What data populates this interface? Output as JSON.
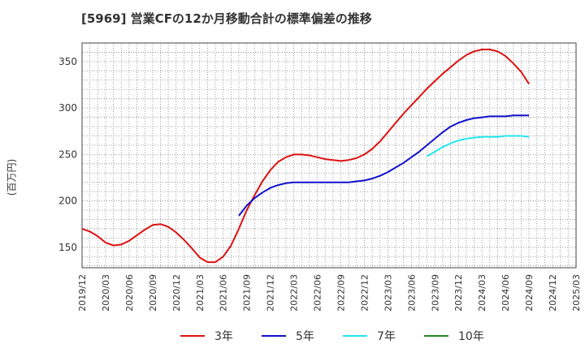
{
  "chart_data": {
    "type": "line",
    "title": "[5969]  営業CFの12か月移動合計の標準偏差の推移",
    "ylabel": "(百万円)",
    "xlabel": "",
    "ylim": [
      128,
      370
    ],
    "yticks": [
      150,
      200,
      250,
      300,
      350
    ],
    "xlim": [
      "2019-12",
      "2025-03"
    ],
    "xticks": [
      "2019/12",
      "2020/03",
      "2020/06",
      "2020/09",
      "2020/12",
      "2021/03",
      "2021/06",
      "2021/09",
      "2021/12",
      "2022/03",
      "2022/06",
      "2022/09",
      "2022/12",
      "2023/03",
      "2023/06",
      "2023/09",
      "2023/12",
      "2024/03",
      "2024/06",
      "2024/09",
      "2024/12",
      "2025/03"
    ],
    "grid": true,
    "legend_position": "bottom",
    "series": [
      {
        "name": "3年",
        "color": "#dd1111",
        "points": [
          [
            "2019-12",
            170
          ],
          [
            "2020-01",
            167
          ],
          [
            "2020-02",
            162
          ],
          [
            "2020-03",
            155
          ],
          [
            "2020-04",
            152
          ],
          [
            "2020-05",
            153
          ],
          [
            "2020-06",
            157
          ],
          [
            "2020-07",
            163
          ],
          [
            "2020-08",
            169
          ],
          [
            "2020-09",
            174
          ],
          [
            "2020-10",
            175
          ],
          [
            "2020-11",
            172
          ],
          [
            "2020-12",
            166
          ],
          [
            "2021-01",
            158
          ],
          [
            "2021-02",
            149
          ],
          [
            "2021-03",
            139
          ],
          [
            "2021-04",
            134
          ],
          [
            "2021-05",
            134
          ],
          [
            "2021-06",
            140
          ],
          [
            "2021-07",
            152
          ],
          [
            "2021-08",
            170
          ],
          [
            "2021-09",
            190
          ],
          [
            "2021-10",
            206
          ],
          [
            "2021-11",
            221
          ],
          [
            "2021-12",
            233
          ],
          [
            "2022-01",
            242
          ],
          [
            "2022-02",
            247
          ],
          [
            "2022-03",
            250
          ],
          [
            "2022-04",
            250
          ],
          [
            "2022-05",
            249
          ],
          [
            "2022-06",
            247
          ],
          [
            "2022-07",
            245
          ],
          [
            "2022-08",
            244
          ],
          [
            "2022-09",
            243
          ],
          [
            "2022-10",
            244
          ],
          [
            "2022-11",
            246
          ],
          [
            "2022-12",
            250
          ],
          [
            "2023-01",
            256
          ],
          [
            "2023-02",
            264
          ],
          [
            "2023-03",
            274
          ],
          [
            "2023-04",
            284
          ],
          [
            "2023-05",
            294
          ],
          [
            "2023-06",
            303
          ],
          [
            "2023-07",
            312
          ],
          [
            "2023-08",
            321
          ],
          [
            "2023-09",
            329
          ],
          [
            "2023-10",
            337
          ],
          [
            "2023-11",
            344
          ],
          [
            "2023-12",
            351
          ],
          [
            "2024-01",
            357
          ],
          [
            "2024-02",
            361
          ],
          [
            "2024-03",
            363
          ],
          [
            "2024-04",
            363
          ],
          [
            "2024-05",
            361
          ],
          [
            "2024-06",
            356
          ],
          [
            "2024-07",
            348
          ],
          [
            "2024-08",
            339
          ],
          [
            "2024-09",
            326
          ]
        ]
      },
      {
        "name": "5年",
        "color": "#1111cc",
        "points": [
          [
            "2021-08",
            184
          ],
          [
            "2021-09",
            195
          ],
          [
            "2021-10",
            203
          ],
          [
            "2021-11",
            209
          ],
          [
            "2021-12",
            214
          ],
          [
            "2022-01",
            217
          ],
          [
            "2022-02",
            219
          ],
          [
            "2022-03",
            220
          ],
          [
            "2022-04",
            220
          ],
          [
            "2022-05",
            220
          ],
          [
            "2022-06",
            220
          ],
          [
            "2022-07",
            220
          ],
          [
            "2022-08",
            220
          ],
          [
            "2022-09",
            220
          ],
          [
            "2022-10",
            220
          ],
          [
            "2022-11",
            221
          ],
          [
            "2022-12",
            222
          ],
          [
            "2023-01",
            224
          ],
          [
            "2023-02",
            227
          ],
          [
            "2023-03",
            231
          ],
          [
            "2023-04",
            236
          ],
          [
            "2023-05",
            241
          ],
          [
            "2023-06",
            247
          ],
          [
            "2023-07",
            253
          ],
          [
            "2023-08",
            260
          ],
          [
            "2023-09",
            267
          ],
          [
            "2023-10",
            274
          ],
          [
            "2023-11",
            280
          ],
          [
            "2023-12",
            284
          ],
          [
            "2024-01",
            287
          ],
          [
            "2024-02",
            289
          ],
          [
            "2024-03",
            290
          ],
          [
            "2024-04",
            291
          ],
          [
            "2024-05",
            291
          ],
          [
            "2024-06",
            291
          ],
          [
            "2024-07",
            292
          ],
          [
            "2024-08",
            292
          ],
          [
            "2024-09",
            292
          ]
        ]
      },
      {
        "name": "7年",
        "color": "#22e5ee",
        "points": [
          [
            "2023-08",
            248
          ],
          [
            "2023-09",
            253
          ],
          [
            "2023-10",
            258
          ],
          [
            "2023-11",
            262
          ],
          [
            "2023-12",
            265
          ],
          [
            "2024-01",
            267
          ],
          [
            "2024-02",
            268
          ],
          [
            "2024-03",
            269
          ],
          [
            "2024-04",
            269
          ],
          [
            "2024-05",
            269
          ],
          [
            "2024-06",
            270
          ],
          [
            "2024-07",
            270
          ],
          [
            "2024-08",
            270
          ],
          [
            "2024-09",
            269
          ]
        ]
      },
      {
        "name": "10年",
        "color": "#228822",
        "points": []
      }
    ]
  }
}
